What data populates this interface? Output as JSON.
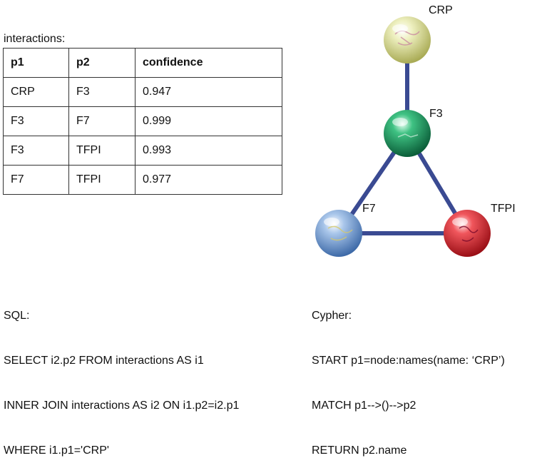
{
  "table": {
    "caption": "interactions:",
    "headers": [
      "p1",
      "p2",
      "confidence"
    ],
    "rows": [
      [
        "CRP",
        "F3",
        "0.947"
      ],
      [
        "F3",
        "F7",
        "0.999"
      ],
      [
        "F3",
        "TFPI",
        "0.993"
      ],
      [
        "F7",
        "TFPI",
        "0.977"
      ]
    ]
  },
  "sql": {
    "lines": [
      "SQL:",
      "SELECT i2.p2 FROM interactions AS i1",
      "INNER JOIN interactions AS i2 ON i1.p2=i2.p1",
      "WHERE i1.p1='CRP'"
    ]
  },
  "cypher": {
    "lines": [
      "Cypher:",
      "START p1=node:names(name: ‘CRP’)",
      "MATCH p1-->()-->p2",
      "RETURN p2.name"
    ]
  },
  "network": {
    "nodes": [
      {
        "id": "CRP",
        "label": "CRP",
        "color": "#e4e6a2"
      },
      {
        "id": "F3",
        "label": "F3",
        "color": "#1f9a62"
      },
      {
        "id": "F7",
        "label": "F7",
        "color": "#7fa6d6"
      },
      {
        "id": "TFPI",
        "label": "TFPI",
        "color": "#e02a32"
      }
    ],
    "edges": [
      [
        "CRP",
        "F3"
      ],
      [
        "F3",
        "F7"
      ],
      [
        "F3",
        "TFPI"
      ],
      [
        "F7",
        "TFPI"
      ]
    ],
    "edge_color": "#3a4a92"
  }
}
